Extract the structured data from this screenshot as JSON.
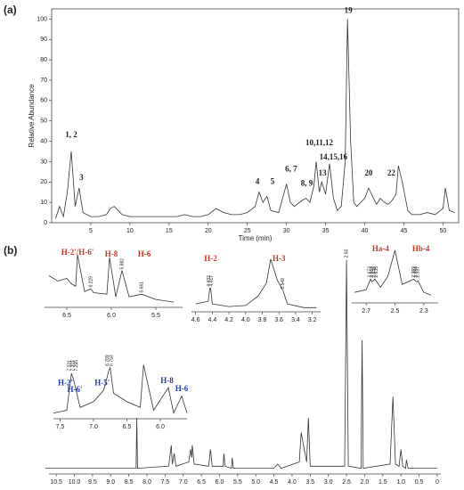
{
  "chart_data": [
    {
      "type": "line",
      "title": "(a)",
      "xlabel": "Time (min)",
      "ylabel": "Relative Abundance",
      "color": "#333333",
      "xlim": [
        0,
        52
      ],
      "xticks": [
        5,
        10,
        15,
        20,
        25,
        30,
        35,
        40,
        45,
        50
      ],
      "ylim": [
        0,
        105
      ],
      "yticks": [
        0,
        10,
        20,
        30,
        40,
        50,
        60,
        70,
        80,
        90,
        100
      ],
      "x": [
        0.5,
        1,
        1.5,
        2,
        2.5,
        3,
        3.5,
        4,
        5,
        6,
        7,
        7.5,
        8,
        8.5,
        9,
        10,
        12,
        14,
        16,
        17,
        18,
        19,
        20,
        21,
        22,
        23,
        24,
        25,
        26,
        26.5,
        27,
        27.5,
        28,
        29,
        30,
        30.5,
        31,
        32,
        32.5,
        33,
        33.5,
        33.8,
        34.2,
        34.5,
        35,
        35.5,
        36,
        36.5,
        37,
        37.5,
        37.8,
        38.2,
        38.6,
        39,
        39.5,
        40,
        40.5,
        41,
        41.5,
        42,
        42.5,
        43,
        43.5,
        44,
        44.3,
        44.8,
        45.5,
        46,
        47,
        48,
        49,
        50,
        50.3,
        50.8,
        51.5
      ],
      "values": [
        2,
        8,
        3,
        15,
        35,
        8,
        17,
        5,
        3,
        3,
        4,
        7,
        8,
        6,
        4,
        3,
        3,
        3,
        3,
        4,
        3,
        3,
        4,
        7,
        5,
        4,
        4,
        5,
        8,
        15,
        10,
        13,
        6,
        5,
        19,
        10,
        8,
        11,
        12,
        10,
        18,
        30,
        15,
        20,
        14,
        29,
        12,
        6,
        8,
        30,
        100,
        40,
        10,
        8,
        10,
        12,
        17,
        13,
        9,
        12,
        10,
        9,
        11,
        14,
        28,
        20,
        6,
        4,
        4,
        5,
        4,
        7,
        17,
        6,
        5
      ],
      "annotations": [
        {
          "text": "1, 2",
          "x": 2.5,
          "y": 43
        },
        {
          "text": "3",
          "x": 3.8,
          "y": 22
        },
        {
          "text": "4",
          "x": 26.3,
          "y": 20
        },
        {
          "text": "5",
          "x": 28.2,
          "y": 20
        },
        {
          "text": "6, 7",
          "x": 30.6,
          "y": 26
        },
        {
          "text": "8, 9",
          "x": 32.6,
          "y": 19
        },
        {
          "text": "10,11,12",
          "x": 34.2,
          "y": 39
        },
        {
          "text": "14,15,16",
          "x": 36,
          "y": 32
        },
        {
          "text": "13",
          "x": 34.6,
          "y": 24
        },
        {
          "text": "19",
          "x": 37.9,
          "y": 104
        },
        {
          "text": "20",
          "x": 40.5,
          "y": 24
        },
        {
          "text": "22",
          "x": 43.4,
          "y": 24
        }
      ]
    },
    {
      "type": "line",
      "title": "(b)",
      "color": "#333333",
      "xlim": [
        10.7,
        -0.1
      ],
      "xticks": [
        {
          "value": 10.5,
          "label": "10.5"
        },
        {
          "value": 10,
          "label": "10.0"
        },
        9.5,
        {
          "value": 9,
          "label": "9.0"
        },
        8.5,
        {
          "value": 8,
          "label": "8.0"
        },
        7.5,
        {
          "value": 7,
          "label": "7.0"
        },
        6.5,
        {
          "value": 6,
          "label": "6.0"
        },
        5.5,
        {
          "value": 5,
          "label": "5.0"
        },
        4.5,
        {
          "value": 4,
          "label": "4.0"
        },
        3.5,
        {
          "value": 3,
          "label": "3.0"
        },
        2.5,
        {
          "value": 2,
          "label": "2.0"
        },
        1.5,
        {
          "value": 1,
          "label": "1.0"
        },
        0.5,
        0
      ],
      "ylim": [
        0,
        105
      ],
      "x": [
        10.8,
        8.3,
        8.28,
        8.26,
        7.4,
        7.33,
        7.3,
        7.25,
        7.2,
        6.85,
        6.8,
        6.77,
        6.75,
        6.7,
        6.3,
        6.25,
        6.2,
        5.9,
        5.88,
        5.85,
        5.67,
        5.65,
        5.62,
        4.5,
        4.4,
        4.3,
        3.8,
        3.75,
        3.6,
        3.55,
        3.5,
        2.55,
        2.5,
        2.45,
        2.1,
        2.07,
        2.04,
        1.3,
        1.22,
        1.15,
        1.05,
        1.0,
        0.95,
        0.87,
        0.85,
        0.8,
        0.0
      ],
      "values": [
        1,
        1,
        25,
        1,
        2,
        12,
        3,
        8,
        2,
        4,
        10,
        6,
        12,
        3,
        2,
        10,
        2,
        2,
        8,
        2,
        1,
        6,
        1,
        1,
        3,
        1,
        4,
        18,
        4,
        25,
        2,
        2,
        100,
        2,
        1,
        62,
        1,
        3,
        35,
        3,
        2,
        10,
        2,
        1,
        5,
        1,
        1
      ],
      "peak_labels": [
        {
          "text": "2.50",
          "x": 2.5,
          "y": 101
        }
      ]
    },
    {
      "type": "line",
      "color": "#333333",
      "xlim": [
        6.75,
        5.2
      ],
      "xticks": [
        6.5,
        {
          "value": 6,
          "label": "6.0"
        },
        5.5
      ],
      "ylim": [
        0,
        110
      ],
      "x": [
        6.7,
        6.6,
        6.5,
        6.45,
        6.4,
        6.38,
        6.3,
        6.23,
        6.2,
        6.05,
        6.02,
        5.95,
        5.88,
        5.8,
        5.66,
        5.5,
        5.3
      ],
      "values": [
        60,
        50,
        55,
        45,
        40,
        100,
        30,
        35,
        28,
        25,
        95,
        20,
        70,
        20,
        25,
        15,
        10
      ],
      "annotations": [
        {
          "text": "H-2'/H-6'",
          "x": 6.38,
          "y": 103,
          "color": "#c0392b"
        },
        {
          "text": "H-8",
          "x": 6.0,
          "y": 100,
          "color": "#c0392b"
        },
        {
          "text": "H-6",
          "x": 5.63,
          "y": 100,
          "color": "#c0392b"
        }
      ],
      "peak_labels": [
        {
          "text": "6.229",
          "x": 6.23,
          "y": 38
        },
        {
          "text": "5.882",
          "x": 5.88,
          "y": 72
        },
        {
          "text": "5.661",
          "x": 5.66,
          "y": 28
        }
      ]
    },
    {
      "type": "line",
      "color": "#333333",
      "xlim": [
        4.65,
        3.1
      ],
      "xticks": [
        4.6,
        4.4,
        4.2,
        {
          "value": 4,
          "label": "4.0"
        },
        3.8,
        3.6,
        3.4,
        3.2
      ],
      "ylim": [
        0,
        110
      ],
      "x": [
        4.6,
        4.45,
        4.43,
        4.42,
        4.4,
        4.2,
        4.0,
        3.85,
        3.75,
        3.7,
        3.62,
        3.55,
        3.5,
        3.3,
        3.15
      ],
      "values": [
        15,
        20,
        45,
        45,
        15,
        10,
        12,
        30,
        55,
        100,
        60,
        40,
        15,
        8,
        8
      ],
      "annotations": [
        {
          "text": "H-2",
          "x": 4.42,
          "y": 100,
          "color": "#c0392b"
        },
        {
          "text": "H-3",
          "x": 3.6,
          "y": 100,
          "color": "#c0392b"
        }
      ],
      "peak_labels": [
        {
          "text": "4.432",
          "x": 4.44,
          "y": 48
        },
        {
          "text": "4.417",
          "x": 4.41,
          "y": 48
        },
        {
          "text": "3.549",
          "x": 3.55,
          "y": 43
        }
      ]
    },
    {
      "type": "line",
      "color": "#333333",
      "xlim": [
        2.8,
        2.2
      ],
      "xticks": [
        2.7,
        2.5,
        2.3
      ],
      "ylim": [
        0,
        110
      ],
      "x": [
        2.78,
        2.7,
        2.67,
        2.66,
        2.64,
        2.6,
        2.55,
        2.5,
        2.45,
        2.37,
        2.35,
        2.34,
        2.3,
        2.25
      ],
      "values": [
        20,
        25,
        45,
        40,
        45,
        30,
        50,
        100,
        35,
        45,
        40,
        42,
        20,
        15
      ],
      "annotations": [
        {
          "text": "Ha-4",
          "x": 2.6,
          "y": 102,
          "color": "#c0392b"
        },
        {
          "text": "Hb-4",
          "x": 2.32,
          "y": 102,
          "color": "#c0392b"
        }
      ],
      "peak_labels": [
        {
          "text": "2.673",
          "x": 2.675,
          "y": 48
        },
        {
          "text": "2.663",
          "x": 2.66,
          "y": 48
        },
        {
          "text": "2.645",
          "x": 2.645,
          "y": 48
        },
        {
          "text": "2.635",
          "x": 2.63,
          "y": 48
        },
        {
          "text": "2.369",
          "x": 2.37,
          "y": 48
        },
        {
          "text": "2.354",
          "x": 2.355,
          "y": 48
        },
        {
          "text": "2.337",
          "x": 2.34,
          "y": 48
        }
      ]
    },
    {
      "type": "line",
      "color": "#333333",
      "xlim": [
        7.6,
        5.6
      ],
      "xticks": [
        7.5,
        {
          "value": 7,
          "label": "7.0"
        },
        6.5,
        {
          "value": 6,
          "label": "6.0"
        }
      ],
      "ylim": [
        0,
        110
      ],
      "x": [
        7.6,
        7.4,
        7.33,
        7.3,
        7.2,
        7.0,
        6.85,
        6.77,
        6.75,
        6.7,
        6.5,
        6.3,
        6.25,
        6.1,
        5.88,
        5.8,
        5.68,
        5.6
      ],
      "values": [
        10,
        15,
        80,
        70,
        20,
        30,
        50,
        85,
        90,
        45,
        30,
        20,
        95,
        15,
        55,
        10,
        40,
        10
      ],
      "annotations": [
        {
          "text": "H-2'",
          "x": 7.42,
          "y": 62,
          "color": "#1f3fa8"
        },
        {
          "text": "H-6'",
          "x": 7.28,
          "y": 50,
          "color": "#1f3fa8"
        },
        {
          "text": "H-5'",
          "x": 6.87,
          "y": 62,
          "color": "#1f3fa8"
        },
        {
          "text": "H-8",
          "x": 5.9,
          "y": 66,
          "color": "#1f3fa8"
        },
        {
          "text": "H-6",
          "x": 5.68,
          "y": 52,
          "color": "#1f3fa8"
        }
      ],
      "peak_labels": [
        {
          "text": "7.331",
          "x": 7.36,
          "y": 84
        },
        {
          "text": "7.301",
          "x": 7.31,
          "y": 84
        },
        {
          "text": "7.295",
          "x": 7.26,
          "y": 84
        },
        {
          "text": "6.769",
          "x": 6.79,
          "y": 93
        },
        {
          "text": "6.753",
          "x": 6.73,
          "y": 93
        }
      ]
    }
  ]
}
